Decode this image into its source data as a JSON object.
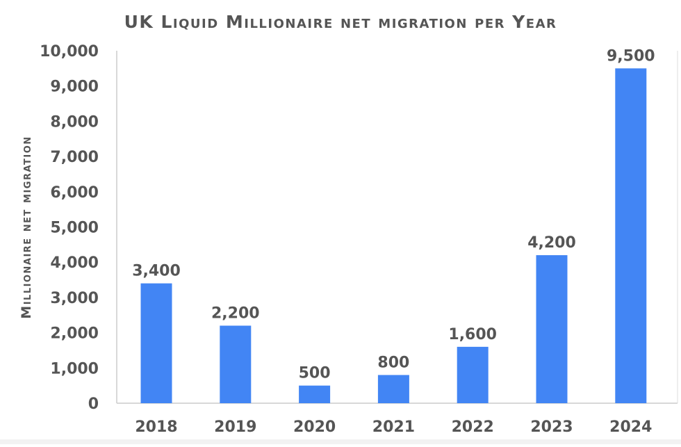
{
  "chart_data": {
    "type": "bar",
    "title": "UK Liquid Millionaire net migration per Year",
    "xlabel": "",
    "ylabel": "Millionaire net migration",
    "categories": [
      "2018",
      "2019",
      "2020",
      "2021",
      "2022",
      "2023",
      "2024"
    ],
    "values": [
      3400,
      2200,
      500,
      800,
      1600,
      4200,
      9500
    ],
    "data_labels": [
      "3,400",
      "2,200",
      "500",
      "800",
      "1,600",
      "4,200",
      "9,500"
    ],
    "ylim": [
      0,
      10000
    ],
    "yticks": [
      "0",
      "1,000",
      "2,000",
      "3,000",
      "4,000",
      "5,000",
      "6,000",
      "7,000",
      "8,000",
      "9,000",
      "10,000"
    ],
    "grid": false,
    "bar_color": "#4285F4"
  }
}
